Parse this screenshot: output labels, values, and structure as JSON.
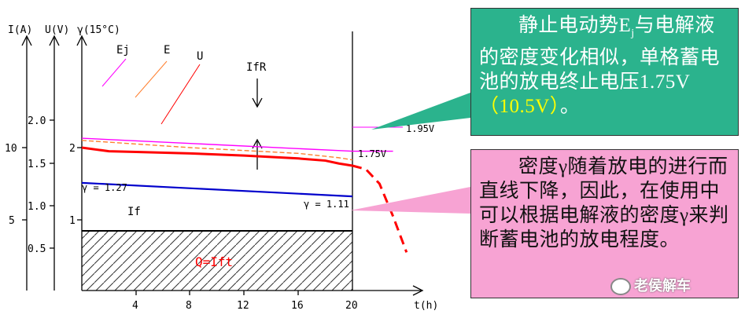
{
  "chart_data": {
    "type": "line",
    "axes": {
      "current": {
        "label": "I(A)",
        "ticks": [
          "10",
          "5"
        ]
      },
      "voltage": {
        "label": "U(V)",
        "ticks": [
          "2",
          "1"
        ]
      },
      "density": {
        "label": "γ(15°C)",
        "ticks": [
          "2.0",
          "1.5",
          "1.0",
          "0.5"
        ]
      },
      "time": {
        "label": "t(h)",
        "ticks": [
          "4",
          "8",
          "12",
          "16",
          "20"
        ],
        "xlim": [
          0,
          24
        ]
      }
    },
    "series": [
      {
        "name": "Ej",
        "color": "#ff00ff",
        "x": [
          0,
          20,
          23
        ],
        "v": [
          2.13,
          1.95,
          1.95
        ]
      },
      {
        "name": "E",
        "color": "#ff8030",
        "x": [
          0,
          4,
          8,
          12,
          16,
          19,
          20
        ],
        "v": [
          2.1,
          2.05,
          2.0,
          1.96,
          1.92,
          1.86,
          1.83
        ]
      },
      {
        "name": "U",
        "color": "#ff0000",
        "x": [
          0,
          2,
          4,
          8,
          12,
          16,
          18,
          19,
          20,
          21,
          22,
          23,
          24
        ],
        "v": [
          2.0,
          1.95,
          1.94,
          1.92,
          1.89,
          1.85,
          1.82,
          1.78,
          1.75,
          1.7,
          1.5,
          1.05,
          0.55
        ]
      },
      {
        "name": "γ",
        "color": "#0000cc",
        "x": [
          0,
          20
        ],
        "v": [
          1.27,
          1.11
        ]
      },
      {
        "name": "If",
        "color": "#000000",
        "x": [
          0,
          20
        ],
        "v": [
          1.0,
          1.0
        ]
      }
    ],
    "labels": {
      "ej": "Ej",
      "e": "E",
      "u": "U",
      "ifr": "IfR",
      "if": "If",
      "v195": "1.95V",
      "v175": "1.75V",
      "g127": "γ = 1.27",
      "g111": "γ = 1.11",
      "q": "Q=Ift"
    }
  },
  "text_green": {
    "a": "静止电动势",
    "b": "E",
    "c": "j",
    "d": "与电解液的密度变化相似，单格蓄电池的放电终止电压",
    "e": "1.75V",
    "f": "（10.5V）",
    "g": "。"
  },
  "text_pink": "密度γ随着放电的进行而直线下降，因此，在使用中可以根据电解液的密度γ来判断蓄电池的放电程度。",
  "watermark": "老侯解车",
  "colors": {
    "green": "#2bb38d",
    "pink": "#f7a3d3"
  }
}
